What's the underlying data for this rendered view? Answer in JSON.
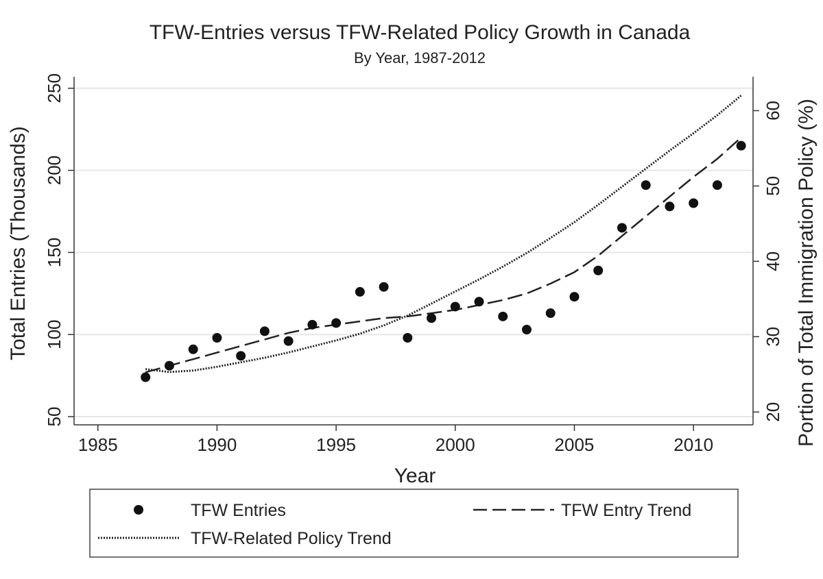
{
  "chart_data": {
    "type": "scatter",
    "title": "TFW-Entries versus TFW-Related Policy Growth in Canada",
    "subtitle": "By Year, 1987-2012",
    "xlabel": "Year",
    "ylabel": "Total Entries (Thousands)",
    "y2label": "Portion of Total Immigration Policy (%)",
    "xlim": [
      1984,
      2012.5
    ],
    "ylim": [
      45,
      257
    ],
    "y2lim": [
      18.3,
      64.5
    ],
    "xticks": [
      "1985",
      "1990",
      "1995",
      "2000",
      "2005",
      "2010"
    ],
    "yticks": [
      "50",
      "100",
      "150",
      "200",
      "250"
    ],
    "y2ticks": [
      "20",
      "30",
      "40",
      "50",
      "60"
    ],
    "grid": "horizontal",
    "legend_position": "bottom",
    "series": [
      {
        "name": "TFW Entries",
        "kind": "scatter",
        "axis": "left",
        "x": [
          1987,
          1988,
          1989,
          1990,
          1991,
          1992,
          1993,
          1994,
          1995,
          1996,
          1997,
          1998,
          1999,
          2000,
          2001,
          2002,
          2003,
          2004,
          2005,
          2006,
          2007,
          2008,
          2009,
          2010,
          2011,
          2012
        ],
        "y": [
          74,
          81,
          91,
          98,
          87,
          102,
          96,
          106,
          107,
          126,
          129,
          98,
          110,
          117,
          120,
          111,
          103,
          113,
          123,
          139,
          165,
          191,
          178,
          180,
          191,
          215
        ]
      },
      {
        "name": "TFW Entry Trend",
        "kind": "line",
        "style": "dashed",
        "axis": "left",
        "x": [
          1987,
          1988,
          1989,
          1990,
          1991,
          1992,
          1993,
          1994,
          1995,
          1996,
          1997,
          1998,
          1999,
          2000,
          2001,
          2002,
          2003,
          2004,
          2005,
          2006,
          2007,
          2008,
          2009,
          2010,
          2011,
          2012
        ],
        "y": [
          77,
          81,
          85,
          89,
          93,
          97,
          101,
          104,
          106,
          108,
          110,
          111,
          113,
          115,
          118,
          121,
          125,
          131,
          138,
          148,
          160,
          172,
          184,
          196,
          207,
          220
        ]
      },
      {
        "name": "TFW-Related Policy Trend",
        "kind": "line",
        "style": "dotted",
        "axis": "right",
        "x": [
          1987,
          1988,
          1989,
          1990,
          1991,
          1992,
          1993,
          1994,
          1995,
          1996,
          1997,
          1998,
          1999,
          2000,
          2001,
          2002,
          2003,
          2004,
          2005,
          2006,
          2007,
          2008,
          2009,
          2010,
          2011,
          2012
        ],
        "y": [
          25.7,
          25.3,
          25.5,
          26.0,
          26.6,
          27.2,
          27.9,
          28.7,
          29.5,
          30.4,
          31.5,
          32.8,
          34.4,
          36.0,
          37.6,
          39.3,
          41.1,
          43.1,
          45.2,
          47.5,
          49.9,
          52.3,
          54.7,
          57.0,
          59.4,
          62.0
        ]
      }
    ],
    "legend": {
      "entries": "TFW Entries",
      "entry_trend": "TFW Entry Trend",
      "policy_trend": "TFW-Related Policy Trend"
    }
  }
}
